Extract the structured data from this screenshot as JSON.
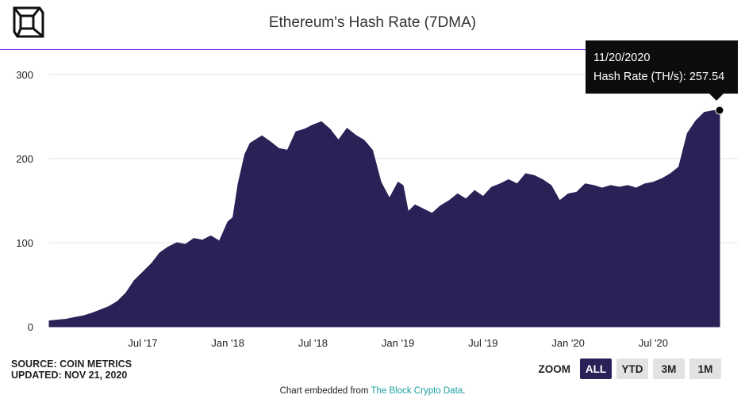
{
  "header": {
    "title": "Ethereum's Hash Rate (7DMA)"
  },
  "chart_data": {
    "type": "area",
    "title": "Ethereum's Hash Rate (7DMA)",
    "xlabel": "",
    "ylabel": "",
    "ylim": [
      0,
      300
    ],
    "yticks": [
      0,
      100,
      200,
      300
    ],
    "xticks": [
      {
        "label": "Jul '17",
        "x": 2017.5
      },
      {
        "label": "Jan '18",
        "x": 2018.0
      },
      {
        "label": "Jul '18",
        "x": 2018.5
      },
      {
        "label": "Jan '19",
        "x": 2019.0
      },
      {
        "label": "Jul '19",
        "x": 2019.5
      },
      {
        "label": "Jan '20",
        "x": 2020.0
      },
      {
        "label": "Jul '20",
        "x": 2020.5
      }
    ],
    "grid": true,
    "color": "#2a2157",
    "series": [
      {
        "x": [
          2016.95,
          2017.0,
          2017.05,
          2017.1,
          2017.15,
          2017.2,
          2017.25,
          2017.3,
          2017.35,
          2017.4,
          2017.45,
          2017.5,
          2017.55,
          2017.6,
          2017.65,
          2017.7,
          2017.75,
          2017.8,
          2017.85,
          2017.9,
          2017.95,
          2018.0,
          2018.03,
          2018.06,
          2018.1,
          2018.13,
          2018.16,
          2018.2,
          2018.25,
          2018.3,
          2018.35,
          2018.4,
          2018.45,
          2018.5,
          2018.55,
          2018.6,
          2018.65,
          2018.7,
          2018.75,
          2018.8,
          2018.85,
          2018.9,
          2018.95,
          2019.0,
          2019.03,
          2019.06,
          2019.1,
          2019.15,
          2019.2,
          2019.25,
          2019.3,
          2019.35,
          2019.4,
          2019.45,
          2019.5,
          2019.55,
          2019.6,
          2019.65,
          2019.7,
          2019.75,
          2019.8,
          2019.85,
          2019.9,
          2019.95,
          2020.0,
          2020.05,
          2020.1,
          2020.15,
          2020.2,
          2020.25,
          2020.3,
          2020.35,
          2020.4,
          2020.45,
          2020.5,
          2020.55,
          2020.6,
          2020.65,
          2020.7,
          2020.75,
          2020.8,
          2020.85,
          2020.89
        ],
        "y": [
          7,
          8,
          9,
          11,
          13,
          16,
          20,
          24,
          30,
          40,
          55,
          65,
          75,
          88,
          95,
          100,
          98,
          105,
          103,
          108,
          102,
          125,
          130,
          170,
          205,
          218,
          222,
          227,
          220,
          212,
          210,
          232,
          235,
          240,
          244,
          235,
          222,
          236,
          228,
          222,
          210,
          172,
          153,
          172,
          168,
          137,
          145,
          140,
          135,
          144,
          150,
          158,
          152,
          162,
          155,
          166,
          170,
          175,
          170,
          182,
          180,
          175,
          168,
          150,
          158,
          160,
          170,
          168,
          165,
          168,
          166,
          168,
          165,
          170,
          172,
          176,
          182,
          190,
          230,
          245,
          255,
          257,
          257.54
        ]
      }
    ],
    "tooltip": {
      "date": "11/20/2020",
      "label": "Hash Rate (TH/s): 257.54",
      "x": 2020.89,
      "y": 257.54
    }
  },
  "footer": {
    "source": "SOURCE: COIN METRICS",
    "updated": "UPDATED: NOV 21, 2020",
    "embed_prefix": "Chart embedded from",
    "embed_link": "The Block Crypto Data",
    "embed_suffix": "."
  },
  "zoom": {
    "label": "ZOOM",
    "buttons": [
      "ALL",
      "YTD",
      "3M",
      "1M"
    ],
    "active": "ALL"
  },
  "icons": {
    "logo": "the-block-cube-logo-icon"
  }
}
